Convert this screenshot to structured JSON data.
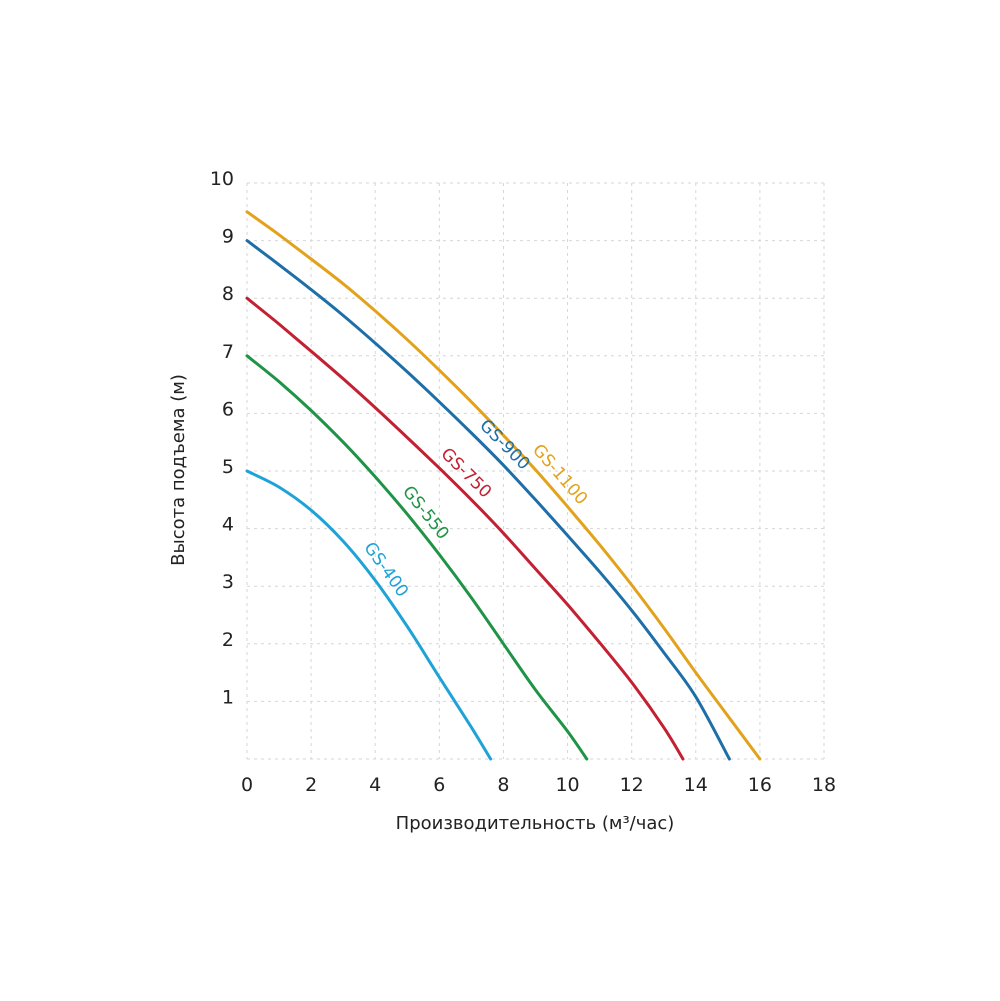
{
  "chart_data": {
    "type": "line",
    "title": "",
    "xlabel": "Производительность (м³/час)",
    "ylabel": "Высота подъема (м)",
    "xlim": [
      0,
      18
    ],
    "ylim": [
      0,
      10
    ],
    "x_ticks": [
      "0",
      "2",
      "4",
      "6",
      "8",
      "10",
      "12",
      "14",
      "16",
      "18"
    ],
    "y_ticks": [
      "1",
      "2",
      "3",
      "4",
      "5",
      "6",
      "7",
      "8",
      "9",
      "10"
    ],
    "grid": true,
    "grid_style": "dashed",
    "series": [
      {
        "name": "GS-400",
        "color": "#1fa3d6",
        "points": [
          [
            0,
            5
          ],
          [
            1,
            4.72
          ],
          [
            2,
            4.32
          ],
          [
            3,
            3.78
          ],
          [
            4,
            3.1
          ],
          [
            5,
            2.3
          ],
          [
            6,
            1.42
          ],
          [
            7,
            0.55
          ],
          [
            7.6,
            0
          ]
        ]
      },
      {
        "name": "GS-550",
        "color": "#1f9346",
        "points": [
          [
            0,
            7
          ],
          [
            1,
            6.55
          ],
          [
            2,
            6.05
          ],
          [
            3,
            5.5
          ],
          [
            4,
            4.9
          ],
          [
            5,
            4.25
          ],
          [
            6,
            3.55
          ],
          [
            7,
            2.8
          ],
          [
            8,
            2.0
          ],
          [
            9,
            1.2
          ],
          [
            10,
            0.48
          ],
          [
            10.6,
            0
          ]
        ]
      },
      {
        "name": "GS-750",
        "color": "#c32032",
        "points": [
          [
            0,
            8
          ],
          [
            1,
            7.55
          ],
          [
            2,
            7.08
          ],
          [
            3,
            6.6
          ],
          [
            4,
            6.1
          ],
          [
            5,
            5.58
          ],
          [
            6,
            5.05
          ],
          [
            7,
            4.5
          ],
          [
            8,
            3.92
          ],
          [
            9,
            3.3
          ],
          [
            10,
            2.68
          ],
          [
            11,
            2.02
          ],
          [
            12,
            1.33
          ],
          [
            13,
            0.55
          ],
          [
            13.6,
            0
          ]
        ]
      },
      {
        "name": "GS-900",
        "color": "#1e6fa8",
        "points": [
          [
            0,
            9
          ],
          [
            1,
            8.58
          ],
          [
            2,
            8.15
          ],
          [
            3,
            7.7
          ],
          [
            4,
            7.22
          ],
          [
            5,
            6.72
          ],
          [
            6,
            6.2
          ],
          [
            7,
            5.66
          ],
          [
            8,
            5.1
          ],
          [
            9,
            4.5
          ],
          [
            10,
            3.88
          ],
          [
            11,
            3.25
          ],
          [
            12,
            2.58
          ],
          [
            13,
            1.85
          ],
          [
            14,
            1.08
          ],
          [
            15.05,
            0
          ]
        ]
      },
      {
        "name": "GS-1100",
        "color": "#e2a21c",
        "points": [
          [
            0,
            9.5
          ],
          [
            1,
            9.1
          ],
          [
            2,
            8.68
          ],
          [
            3,
            8.25
          ],
          [
            4,
            7.78
          ],
          [
            5,
            7.28
          ],
          [
            6,
            6.75
          ],
          [
            7,
            6.2
          ],
          [
            8,
            5.62
          ],
          [
            9,
            5.02
          ],
          [
            10,
            4.38
          ],
          [
            11,
            3.72
          ],
          [
            12,
            3.02
          ],
          [
            13,
            2.28
          ],
          [
            14,
            1.5
          ],
          [
            15,
            0.75
          ],
          [
            16,
            0
          ]
        ]
      }
    ],
    "annotations": [
      {
        "text": "GS-1100",
        "at_x": 9.4,
        "color": "#e2a21c"
      },
      {
        "text": "GS-900",
        "at_x": 7.7,
        "color": "#1e6fa8"
      },
      {
        "text": "GS-750",
        "at_x": 6.5,
        "color": "#c32032"
      },
      {
        "text": "GS-550",
        "at_x": 5.2,
        "color": "#1f9346"
      },
      {
        "text": "GS-400",
        "at_x": 3.95,
        "color": "#1fa3d6"
      }
    ]
  }
}
